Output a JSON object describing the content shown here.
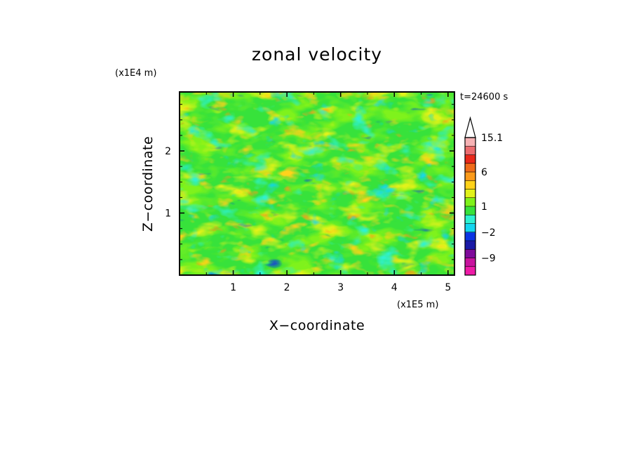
{
  "chart_data": {
    "type": "heatmap",
    "title": "zonal velocity",
    "xlabel": "X−coordinate",
    "ylabel": "Z−coordinate",
    "x_scale_label": "(x1E5 m)",
    "y_scale_label": "(x1E4 m)",
    "time_label": "t=24600 s",
    "xlim": [
      0,
      5.12
    ],
    "ylim": [
      0,
      2.95
    ],
    "x_ticks": [
      1,
      2,
      3,
      4,
      5
    ],
    "y_ticks": [
      1,
      2
    ],
    "x_tick_labels": [
      "1",
      "2",
      "3",
      "4",
      "5"
    ],
    "y_tick_labels": [
      "1",
      "2"
    ],
    "colorbar": {
      "labeled_values": [
        15.1,
        6,
        1,
        -2,
        -9
      ],
      "labels": [
        "15.1",
        "6",
        "1",
        "−2",
        "−9"
      ],
      "levels": [
        -15,
        -12,
        -9,
        -6,
        -4,
        -2,
        -1,
        0,
        1,
        2,
        3,
        4,
        6,
        8,
        10,
        12.5,
        15.1
      ],
      "colors": [
        "#ee1ba7",
        "#c8139e",
        "#7f0a9b",
        "#1a1aa6",
        "#0b34e3",
        "#14d6f0",
        "#2ef2d2",
        "#37e23b",
        "#7ff21a",
        "#e1f21a",
        "#ffd21a",
        "#fb9a1a",
        "#ef6b1a",
        "#e9281a",
        "#ec6c6f",
        "#f6b2b4"
      ],
      "extend_top_color": "#ffffff"
    },
    "grid": false
  }
}
